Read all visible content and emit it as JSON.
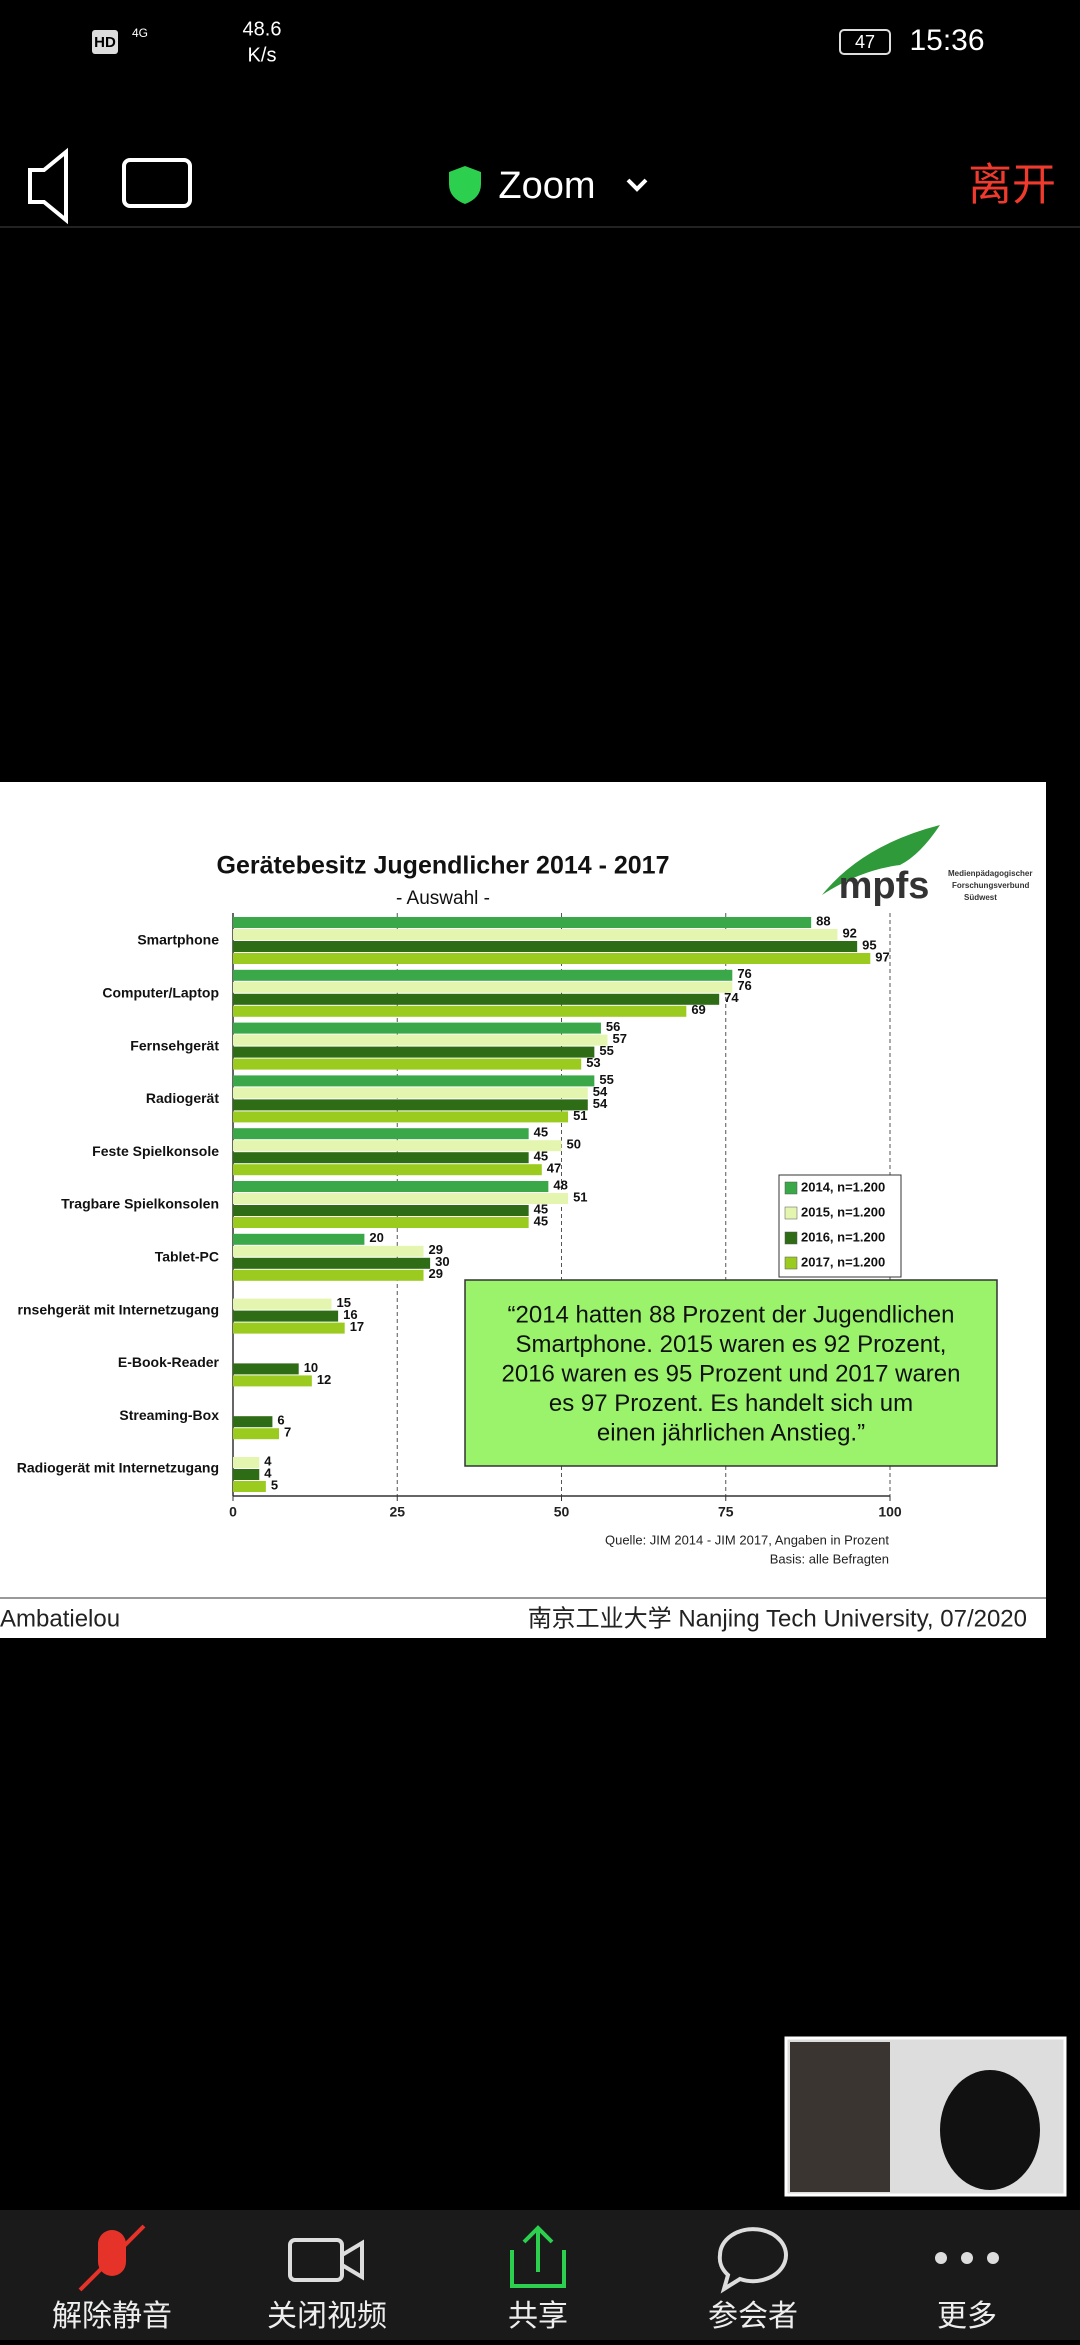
{
  "status_bar": {
    "hd": "HD",
    "network": "4G",
    "speed": "48.6",
    "speed_unit": "K/s",
    "battery": "47",
    "time": "15:36"
  },
  "top_bar": {
    "title": "Zoom",
    "leave": "离开"
  },
  "slide": {
    "logo": "mpfs",
    "logo_caption": [
      "Medienpädagogischer",
      "Forschungsverbund",
      "Südwest"
    ],
    "source": "Quelle: JIM 2014 - JIM 2017, Angaben in Prozent",
    "basis": "Basis: alle Befragten",
    "author": "Ambatielou",
    "institution": "南京工业大学 Nanjing Tech University, 07/2020"
  },
  "chart_data": {
    "type": "bar",
    "orientation": "horizontal",
    "title": "Gerätebesitz Jugendlicher  2014 - 2017",
    "subtitle": "- Auswahl -",
    "categories": [
      "Smartphone",
      "Computer/Laptop",
      "Fernsehgerät",
      "Radiogerät",
      "Feste Spielkonsole",
      "Tragbare Spielkonsolen",
      "Tablet-PC",
      "rnsehgerät mit Internetzugang",
      "E-Book-Reader",
      "Streaming-Box",
      "Radiogerät mit Internetzugang"
    ],
    "series": [
      {
        "name": "2014, n=1.200",
        "color": "#3aa848",
        "values": [
          88,
          76,
          56,
          55,
          45,
          48,
          20,
          null,
          null,
          null,
          null
        ]
      },
      {
        "name": "2015, n=1.200",
        "color": "#e4f5b0",
        "values": [
          92,
          76,
          57,
          54,
          50,
          51,
          29,
          15,
          null,
          null,
          4
        ]
      },
      {
        "name": "2016, n=1.200",
        "color": "#2e6c16",
        "values": [
          95,
          74,
          55,
          54,
          45,
          45,
          30,
          16,
          10,
          6,
          4
        ]
      },
      {
        "name": "2017, n=1.200",
        "color": "#9bcb1f",
        "values": [
          97,
          69,
          53,
          51,
          47,
          45,
          29,
          17,
          12,
          7,
          5
        ]
      }
    ],
    "xlim": [
      0,
      100
    ],
    "xticks": [
      0,
      25,
      50,
      75,
      100
    ],
    "grid": true,
    "legend": "right",
    "annotation": [
      "“2014 hatten 88 Prozent der Jugendlichen",
      "Smartphone. 2015 waren es 92 Prozent,",
      "2016 waren es 95 Prozent und 2017 waren",
      "es 97 Prozent. Es handelt sich um",
      "einen jährlichen Anstieg.”"
    ]
  },
  "toolbar": {
    "buttons": [
      "解除静音",
      "关闭视频",
      "共享",
      "参会者",
      "更多"
    ]
  }
}
